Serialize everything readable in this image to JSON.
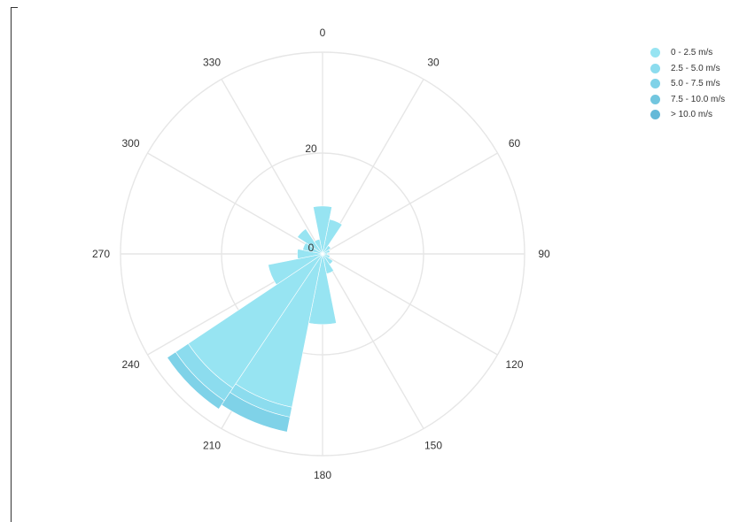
{
  "chart_data": {
    "type": "windrose",
    "title": "",
    "direction_labels": [
      "0",
      "30",
      "60",
      "90",
      "120",
      "150",
      "180",
      "210",
      "240",
      "270",
      "300",
      "330"
    ],
    "radial_ticks": [
      0,
      20
    ],
    "radial_range": [
      0,
      40
    ],
    "grid": true,
    "legend_position": "top-right",
    "direction_bin_width_deg": 22.5,
    "series": [
      {
        "name": "0 - 2.5 m/s",
        "color": "#97e4f2",
        "values": [
          {
            "direction": 0,
            "value": 9.5
          },
          {
            "direction": 22.5,
            "value": 7
          },
          {
            "direction": 45,
            "value": 2
          },
          {
            "direction": 67.5,
            "value": 1.5
          },
          {
            "direction": 90,
            "value": 1
          },
          {
            "direction": 112.5,
            "value": 1.5
          },
          {
            "direction": 135,
            "value": 2.5
          },
          {
            "direction": 157.5,
            "value": 4
          },
          {
            "direction": 180,
            "value": 14
          },
          {
            "direction": 202.5,
            "value": 31
          },
          {
            "direction": 225,
            "value": 32
          },
          {
            "direction": 247.5,
            "value": 11
          },
          {
            "direction": 270,
            "value": 5
          },
          {
            "direction": 292.5,
            "value": 4
          },
          {
            "direction": 315,
            "value": 6
          },
          {
            "direction": 337.5,
            "value": 3
          }
        ]
      },
      {
        "name": "2.5 - 5.0 m/s",
        "color": "#8cdcee",
        "values": [
          {
            "direction": 202.5,
            "value": 2
          },
          {
            "direction": 225,
            "value": 3
          }
        ]
      },
      {
        "name": "5.0 - 7.5 m/s",
        "color": "#7fd2e8",
        "values": [
          {
            "direction": 202.5,
            "value": 3
          },
          {
            "direction": 225,
            "value": 2
          }
        ]
      },
      {
        "name": "7.5 - 10.0 m/s",
        "color": "#72c6df",
        "values": []
      },
      {
        "name": "> 10.0 m/s",
        "color": "#64b9d8",
        "values": []
      }
    ]
  },
  "legend": {
    "items": [
      {
        "label": "0 - 2.5 m/s",
        "color": "#97e4f2"
      },
      {
        "label": "2.5 - 5.0 m/s",
        "color": "#8cdcee"
      },
      {
        "label": "5.0 - 7.5 m/s",
        "color": "#7fd2e8"
      },
      {
        "label": "7.5 - 10.0 m/s",
        "color": "#72c6df"
      },
      {
        "label": "> 10.0 m/s",
        "color": "#64b9d8"
      }
    ]
  }
}
